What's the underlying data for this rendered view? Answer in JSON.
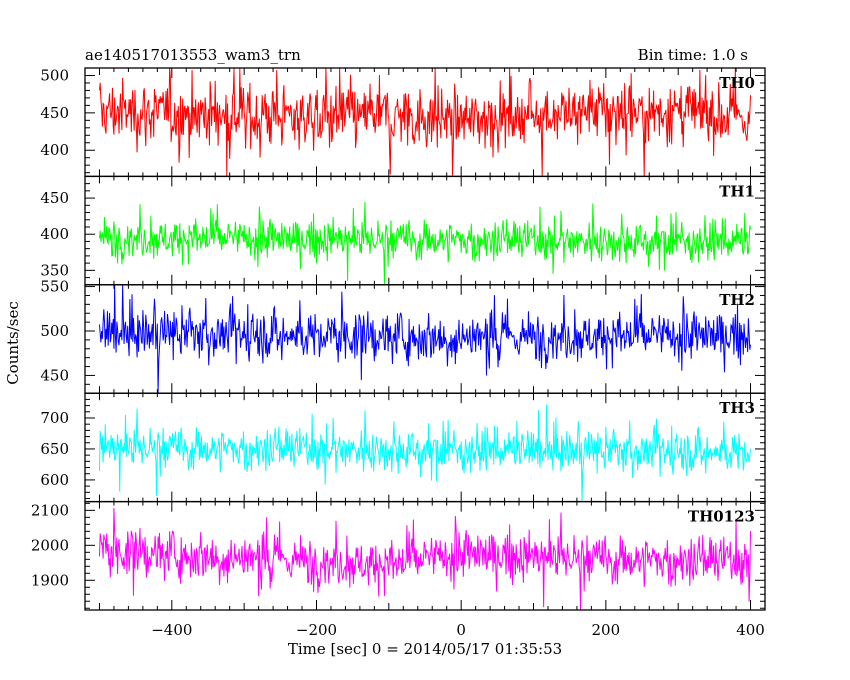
{
  "header": {
    "title": "ae140517013553_wam3_trn",
    "bin_time": "Bin time: 1.0 s"
  },
  "chart_data": {
    "type": "line",
    "title": "ae140517013553_wam3_trn",
    "xlabel": "Time [sec] 0 = 2014/05/17 01:35:53",
    "ylabel": "Counts/sec",
    "xlim": [
      -520,
      420
    ],
    "x_ticks": [
      -400,
      -200,
      0,
      200,
      400
    ],
    "x_range": [
      -500,
      400
    ],
    "x_step": 1,
    "grid": false,
    "legend": "none",
    "panels": [
      {
        "name": "TH0",
        "color": "#ff0000",
        "ylim": [
          365,
          510
        ],
        "y_ticks": [
          400,
          450,
          500
        ],
        "y_tick_labels": [
          "400",
          "450",
          "500"
        ],
        "mean": 450,
        "amplitude": 34,
        "max": 510,
        "min": 365,
        "trend": [
          [
            -500,
            452
          ],
          [
            -200,
            445
          ],
          [
            -100,
            447
          ],
          [
            0,
            440
          ],
          [
            100,
            450
          ],
          [
            300,
            452
          ],
          [
            400,
            443
          ]
        ]
      },
      {
        "name": "TH1",
        "color": "#00ff00",
        "ylim": [
          330,
          480
        ],
        "y_ticks": [
          350,
          400,
          450
        ],
        "y_tick_labels": [
          "350",
          "400",
          "450"
        ],
        "mean": 393,
        "amplitude": 22,
        "max": 475,
        "min": 330,
        "trend": [
          [
            -500,
            395
          ],
          [
            0,
            392
          ],
          [
            400,
            390
          ]
        ]
      },
      {
        "name": "TH2",
        "color": "#0000ff",
        "ylim": [
          430,
          552
        ],
        "y_ticks": [
          450,
          500,
          550
        ],
        "y_tick_labels": [
          "450",
          "500",
          "550"
        ],
        "mean": 495,
        "amplitude": 22,
        "max": 552,
        "min": 430,
        "trend": [
          [
            -500,
            498
          ],
          [
            0,
            493
          ],
          [
            400,
            495
          ]
        ]
      },
      {
        "name": "TH3",
        "color": "#00ffff",
        "ylim": [
          565,
          740
        ],
        "y_ticks": [
          600,
          650,
          700
        ],
        "y_tick_labels": [
          "600",
          "650",
          "700"
        ],
        "mean": 650,
        "amplitude": 27,
        "max": 740,
        "min": 565,
        "trend": [
          [
            -500,
            652
          ],
          [
            0,
            648
          ],
          [
            400,
            645
          ]
        ]
      },
      {
        "name": "TH0123",
        "color": "#ff00ff",
        "ylim": [
          1815,
          2125
        ],
        "y_ticks": [
          1900,
          2000,
          2100
        ],
        "y_tick_labels": [
          "1900",
          "2000",
          "2100"
        ],
        "mean": 1975,
        "amplitude": 55,
        "max": 2125,
        "min": 1815,
        "trend": [
          [
            -500,
            1985
          ],
          [
            -100,
            1945
          ],
          [
            0,
            1975
          ],
          [
            200,
            1960
          ],
          [
            400,
            1955
          ]
        ]
      }
    ]
  }
}
